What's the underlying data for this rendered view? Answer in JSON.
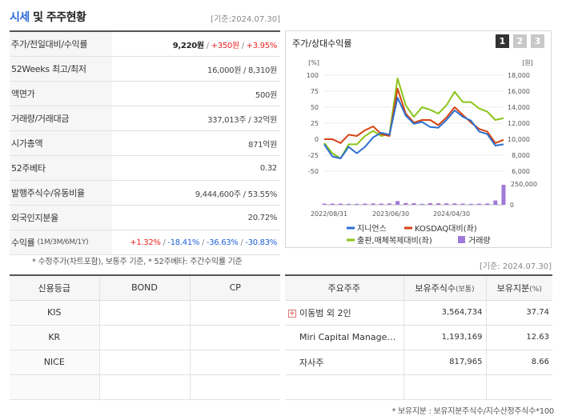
{
  "header": {
    "title_accent": "시세",
    "title_rest": " 및 주주현황",
    "date": "[기준:2024.07.30]"
  },
  "price_table": {
    "rows": [
      {
        "label": "주가/전일대비/수익률",
        "price": "9,220원",
        "change": "+350원",
        "rate": "+3.95%"
      },
      {
        "label": "52Weeks 최고/최저",
        "value": "16,000원 / 8,310원"
      },
      {
        "label": "액면가",
        "value": "500원"
      },
      {
        "label": "거래량/거래대금",
        "value": "337,013주 / 32억원"
      },
      {
        "label": "시가총액",
        "value": "871억원"
      },
      {
        "label": "52주베타",
        "value": "0.32"
      },
      {
        "label": "발행주식수/유동비율",
        "value": "9,444,600주 / 53.55%"
      },
      {
        "label": "외국인지분율",
        "value": "20.72%"
      },
      {
        "label": "수익률",
        "label_sub": "(1M/3M/6M/1Y)",
        "r1": "+1.32%",
        "r2": "-18.41%",
        "r3": "-36.63%",
        "r4": "-30.83%"
      }
    ],
    "note": "* 수정주가(차트포함), 보통주 기준, * 52주베타: 주간수익률 기준"
  },
  "chart_panel": {
    "title": "주가/상대수익률",
    "tabs": [
      "1",
      "2",
      "3"
    ],
    "active_tab": "1",
    "left_unit": "[%]",
    "right_unit": "[원]",
    "left_ticks": [
      "100",
      "75",
      "50",
      "25",
      "0",
      "-25",
      "-50"
    ],
    "right_ticks": [
      "18,000",
      "16,000",
      "14,000",
      "12,000",
      "10,000",
      "8,000",
      "6,000"
    ],
    "volume_ticks": [
      "250,000",
      "0"
    ],
    "x_labels": [
      "2022/08/31",
      "2023/06/30",
      "2024/04/30"
    ],
    "legend": [
      "지니언스",
      "KOSDAQ대비(좌)",
      "출판,매체복제대비(좌)",
      "거래량"
    ],
    "colors": {
      "stock": "#2b6fd0",
      "kosdaq": "#d64413",
      "sector": "#8cc419",
      "volume": "#a07ad8"
    }
  },
  "chart_data": {
    "type": "line",
    "x_index": [
      0,
      1,
      2,
      3,
      4,
      5,
      6,
      7,
      8,
      9,
      10,
      11,
      12,
      13,
      14,
      15,
      16,
      17,
      18,
      19,
      20,
      21,
      22
    ],
    "series": [
      {
        "name": "지니언스",
        "axis": "left",
        "values": [
          -8,
          -27,
          -30,
          -12,
          -22,
          -12,
          3,
          10,
          7,
          65,
          37,
          24,
          27,
          19,
          18,
          30,
          45,
          35,
          29,
          12,
          8,
          -10,
          -8
        ]
      },
      {
        "name": "KOSDAQ대비(좌)",
        "axis": "left",
        "values": [
          0,
          0,
          -6,
          7,
          5,
          14,
          20,
          8,
          5,
          79,
          40,
          26,
          30,
          30,
          22,
          34,
          50,
          38,
          26,
          16,
          12,
          -6,
          -1
        ]
      },
      {
        "name": "출판,매체복제대비(좌)",
        "axis": "left",
        "values": [
          -6,
          -22,
          -30,
          -8,
          -8,
          5,
          13,
          5,
          8,
          95,
          53,
          35,
          50,
          46,
          40,
          53,
          74,
          58,
          58,
          48,
          43,
          30,
          33
        ]
      },
      {
        "name": "거래량",
        "axis": "volume",
        "values": [
          14,
          14,
          14,
          12,
          12,
          14,
          16,
          14,
          16,
          45,
          22,
          20,
          12,
          20,
          18,
          18,
          16,
          14,
          12,
          14,
          16,
          52,
          240
        ]
      }
    ],
    "ylim_left": [
      -50,
      100
    ],
    "ylim_right": [
      6000,
      18000
    ],
    "ylim_volume": [
      0,
      250000
    ]
  },
  "ref_date": "[기준: 2024.07.30]",
  "credit_table": {
    "headers": [
      "신용등급",
      "BOND",
      "CP"
    ],
    "rows": [
      {
        "agency": "KIS",
        "bond": "",
        "cp": ""
      },
      {
        "agency": "KR",
        "bond": "",
        "cp": ""
      },
      {
        "agency": "NICE",
        "bond": "",
        "cp": ""
      },
      {
        "agency": "",
        "bond": "",
        "cp": ""
      }
    ]
  },
  "holder_table": {
    "headers": {
      "name": "주요주주",
      "shares": "보유주식수",
      "shares_unit": "(보통)",
      "ratio": "보유지분",
      "ratio_unit": "(%)"
    },
    "rows": [
      {
        "name": "이동범 외 2인",
        "shares": "3,564,734",
        "ratio": "37.74",
        "expandable": true
      },
      {
        "name": "Miri Capital Management",
        "shares": "1,193,169",
        "ratio": "12.63",
        "expandable": false
      },
      {
        "name": "자사주",
        "shares": "817,965",
        "ratio": "8.66",
        "expandable": false
      }
    ],
    "note": "* 보유지분 : 보유지분주식수/지수산정주식수*100"
  }
}
